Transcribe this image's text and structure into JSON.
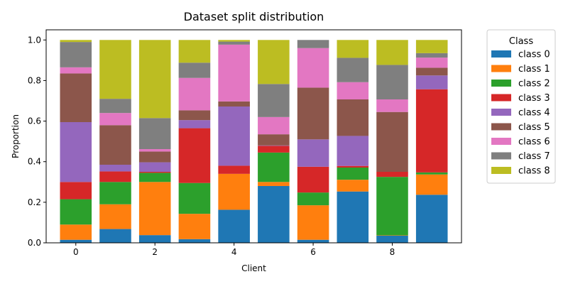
{
  "chart_data": {
    "type": "bar",
    "stacked": true,
    "title": "Dataset split distribution",
    "xlabel": "Client",
    "ylabel": "Proportion",
    "categories": [
      0,
      1,
      2,
      3,
      4,
      5,
      6,
      7,
      8,
      9
    ],
    "xticks": [
      0,
      2,
      4,
      6,
      8
    ],
    "yticks": [
      "0.0",
      "0.2",
      "0.4",
      "0.6",
      "0.8",
      "1.0"
    ],
    "ylim": [
      0,
      1.05
    ],
    "xlim": [
      -0.75,
      9.75
    ],
    "grid": false,
    "legend": {
      "title": "Class",
      "placement": "outside-right-top"
    },
    "series": [
      {
        "name": "class 0",
        "color": "#1f77b4",
        "values": [
          0.015,
          0.068,
          0.038,
          0.018,
          0.163,
          0.28,
          0.015,
          0.253,
          0.035,
          0.237
        ]
      },
      {
        "name": "class 1",
        "color": "#ff7f0e",
        "values": [
          0.075,
          0.122,
          0.262,
          0.125,
          0.177,
          0.02,
          0.17,
          0.058,
          0.002,
          0.1
        ]
      },
      {
        "name": "class 2",
        "color": "#2ca02c",
        "values": [
          0.125,
          0.11,
          0.045,
          0.152,
          0.0,
          0.145,
          0.063,
          0.06,
          0.288,
          0.01
        ]
      },
      {
        "name": "class 3",
        "color": "#d62728",
        "values": [
          0.085,
          0.052,
          0.005,
          0.27,
          0.04,
          0.033,
          0.127,
          0.008,
          0.025,
          0.41
        ]
      },
      {
        "name": "class 4",
        "color": "#9467bd",
        "values": [
          0.295,
          0.033,
          0.047,
          0.04,
          0.292,
          0.002,
          0.135,
          0.148,
          0.0,
          0.068
        ]
      },
      {
        "name": "class 5",
        "color": "#8c564b",
        "values": [
          0.24,
          0.195,
          0.053,
          0.048,
          0.025,
          0.055,
          0.255,
          0.18,
          0.295,
          0.038
        ]
      },
      {
        "name": "class 6",
        "color": "#e377c2",
        "values": [
          0.03,
          0.06,
          0.012,
          0.16,
          0.28,
          0.085,
          0.195,
          0.085,
          0.062,
          0.05
        ]
      },
      {
        "name": "class 7",
        "color": "#7f7f7f",
        "values": [
          0.125,
          0.07,
          0.153,
          0.075,
          0.015,
          0.163,
          0.04,
          0.12,
          0.17,
          0.022
        ]
      },
      {
        "name": "class 8",
        "color": "#bcbd22",
        "values": [
          0.01,
          0.29,
          0.385,
          0.112,
          0.008,
          0.217,
          0.0,
          0.088,
          0.123,
          0.065
        ]
      }
    ]
  }
}
